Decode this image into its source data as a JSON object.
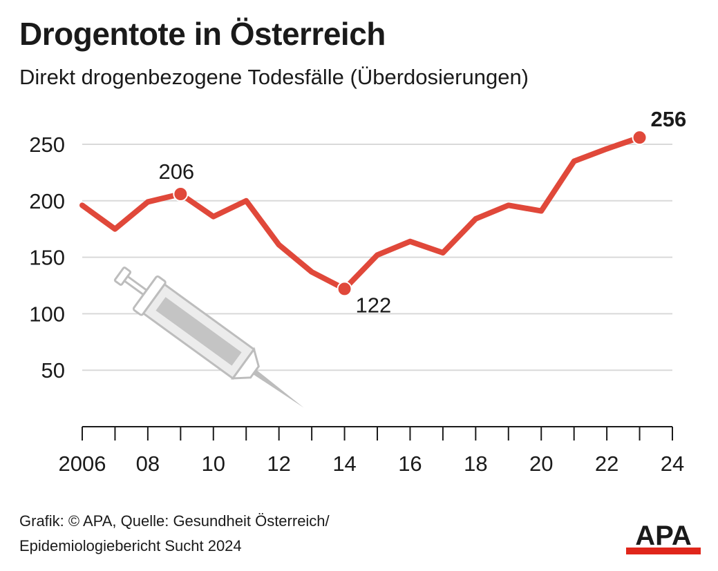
{
  "header": {
    "title": "Drogentote in Österreich",
    "subtitle": "Direkt drogenbezogene Todesfälle (Überdosierungen)"
  },
  "chart_data": {
    "type": "line",
    "title": "Drogentote in Österreich",
    "subtitle": "Direkt drogenbezogene Todesfälle (Überdosierungen)",
    "xlabel": "",
    "ylabel": "",
    "x": [
      2006,
      2007,
      2008,
      2009,
      2010,
      2011,
      2012,
      2013,
      2014,
      2015,
      2016,
      2017,
      2018,
      2019,
      2020,
      2021,
      2022,
      2023
    ],
    "series": [
      {
        "name": "",
        "values": [
          196,
          175,
          199,
          206,
          186,
          200,
          161,
          137,
          122,
          152,
          164,
          154,
          184,
          196,
          191,
          235,
          246,
          256
        ]
      }
    ],
    "xlim": [
      2006,
      2024
    ],
    "ylim": [
      0,
      270
    ],
    "x_ticks": [
      2006,
      2007,
      2008,
      2009,
      2010,
      2011,
      2012,
      2013,
      2014,
      2015,
      2016,
      2017,
      2018,
      2019,
      2020,
      2021,
      2022,
      2023,
      2024
    ],
    "x_tick_labels": [
      {
        "x": 2006,
        "label": "2006"
      },
      {
        "x": 2008,
        "label": "08"
      },
      {
        "x": 2010,
        "label": "10"
      },
      {
        "x": 2012,
        "label": "12"
      },
      {
        "x": 2014,
        "label": "14"
      },
      {
        "x": 2016,
        "label": "16"
      },
      {
        "x": 2018,
        "label": "18"
      },
      {
        "x": 2020,
        "label": "20"
      },
      {
        "x": 2022,
        "label": "22"
      },
      {
        "x": 2024,
        "label": "24"
      }
    ],
    "y_ticks": [
      50,
      100,
      150,
      200,
      250
    ],
    "y_tick_labels": [
      "50",
      "100",
      "150",
      "200",
      "250"
    ],
    "grid": true,
    "annotations": [
      {
        "x": 2009,
        "y": 206,
        "label": "206",
        "bold": false
      },
      {
        "x": 2014,
        "y": 122,
        "label": "122",
        "bold": false
      },
      {
        "x": 2023,
        "y": 256,
        "label": "256",
        "bold": true
      }
    ],
    "colors": {
      "line": "#e0483a",
      "grid": "#d9d9d9",
      "axis": "#1a1a1a",
      "illustration": "#bdbdbd"
    },
    "illustration": "syringe-icon"
  },
  "footer": {
    "source_line1": "Grafik: © APA, Quelle: Gesundheit Österreich/",
    "source_line2": "Epidemiologiebericht Sucht 2024",
    "logo_text": "APA",
    "logo_colors": {
      "text": "#1a1a1a",
      "bar": "#e0261b"
    }
  }
}
